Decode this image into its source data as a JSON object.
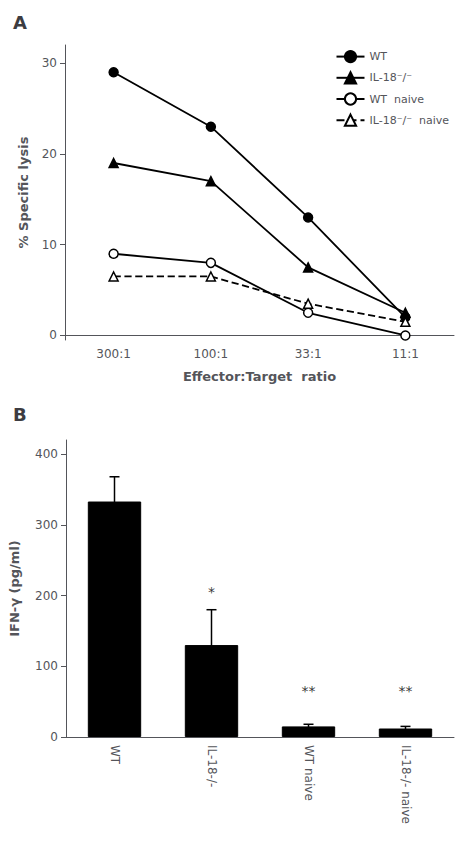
{
  "chart_data": [
    {
      "type": "line",
      "title": "A",
      "categories": [
        "300:1",
        "100:1",
        "33:1",
        "11:1"
      ],
      "series": [
        {
          "name": "WT",
          "color": "black",
          "marker": "filled_circle",
          "line_style": "solid",
          "values": [
            29.0,
            23.0,
            13.0,
            2.0
          ]
        },
        {
          "name": "IL-18⁻/⁻",
          "color": "black",
          "marker": "filled_triangle",
          "line_style": "solid",
          "values": [
            19.0,
            17.0,
            7.5,
            2.5
          ]
        },
        {
          "name": "WT  naive",
          "color": "black",
          "marker": "open_circle",
          "line_style": "solid",
          "values": [
            9.0,
            8.0,
            2.5,
            0.0
          ]
        },
        {
          "name": "IL-18⁻/⁻  naive",
          "color": "black",
          "marker": "open_triangle",
          "line_style": "dashed",
          "values": [
            6.5,
            6.5,
            3.5,
            1.5
          ]
        }
      ],
      "xlabel": "Effector:Target  ratio",
      "ylabel": "% Specific lysis",
      "ylim": [
        -0.5,
        32
      ],
      "yticks": [
        0,
        10,
        20,
        30
      ],
      "grid": false,
      "legend": "upper right"
    },
    {
      "type": "bar",
      "title": "B",
      "categories": [
        "WT",
        "IL-18-/-",
        "WT naive",
        "IL-18-/- naive"
      ],
      "values": [
        333,
        130,
        15,
        12
      ],
      "errors": [
        35,
        50,
        3,
        3
      ],
      "color": "black",
      "ylabel": "IFN-γ (pg/ml)",
      "ylim": [
        0,
        420
      ],
      "yticks": [
        0,
        100,
        200,
        300,
        400
      ],
      "grid": false,
      "annotations": [
        {
          "category": "IL-18-/-",
          "y": 195,
          "text": "*"
        },
        {
          "category": "WT naive",
          "y": 55,
          "text": "**"
        },
        {
          "category": "IL-18-/- naive",
          "y": 55,
          "text": "**"
        }
      ]
    }
  ]
}
